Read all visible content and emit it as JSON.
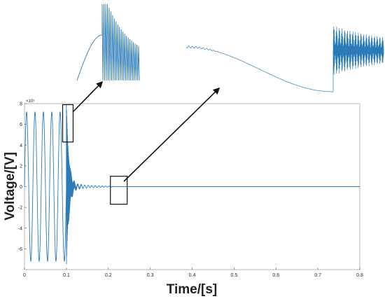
{
  "chart_data": {
    "type": "line",
    "title": "",
    "xlabel": "Time/[s]",
    "ylabel": "Voltage/[V]",
    "xlim": [
      0,
      0.8
    ],
    "ylim": [
      -8,
      8
    ],
    "y_multiplier": "×10⁵",
    "x_ticks": [
      "0",
      "0.1",
      "0.2",
      "0.3",
      "0.4",
      "0.5",
      "0.6",
      "0.7",
      "0.8"
    ],
    "y_ticks": [
      "-6",
      "-4",
      "-2",
      "0",
      "2",
      "4",
      "6",
      "8"
    ],
    "grid": false,
    "line_color": "#2b7bb9",
    "series": [
      {
        "source_frequency_hz": 50,
        "pre_fault_amplitude": 7.2,
        "fault_time": 0.1,
        "post_fault_peak": 7.9,
        "residual_oscillation_amplitude": 0.35,
        "residual_oscillation_end": 0.21,
        "steady_value": 0
      }
    ],
    "zoom_boxes": [
      {
        "name": "zoom-fault",
        "x": [
          0.091,
          0.116
        ],
        "y": [
          4.3,
          7.9
        ]
      },
      {
        "name": "zoom-residual",
        "x": [
          0.205,
          0.245
        ],
        "y": [
          -1.7,
          1.0
        ]
      }
    ]
  }
}
